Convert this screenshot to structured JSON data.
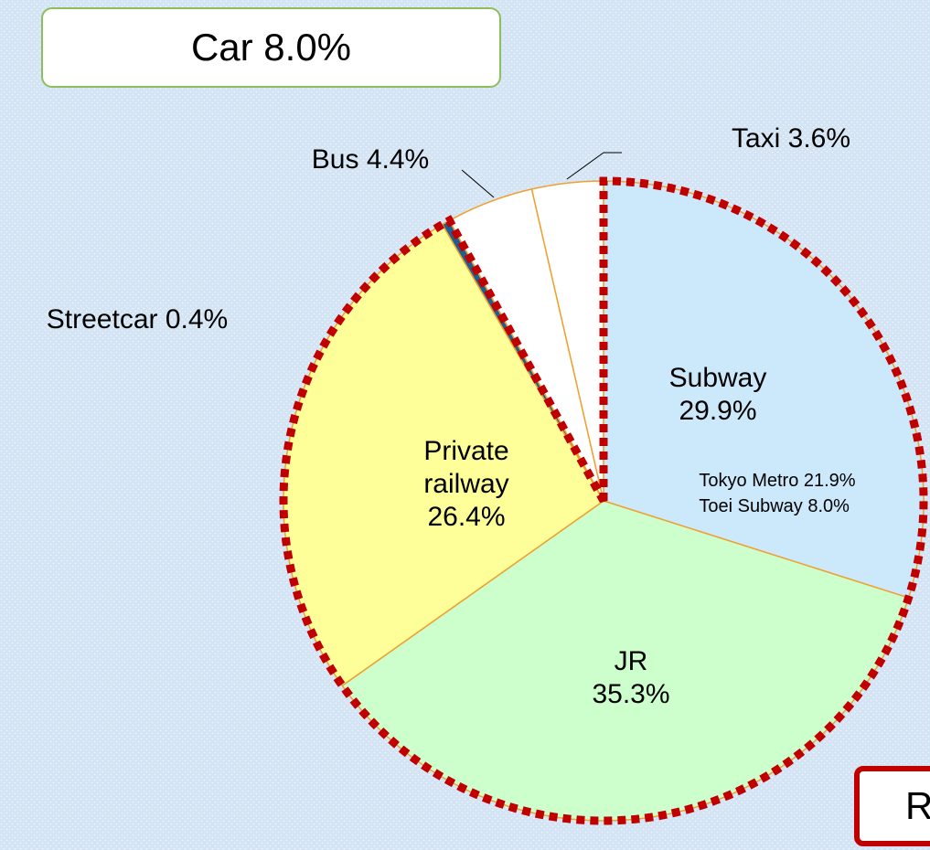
{
  "chart_data": {
    "type": "pie",
    "categories": [
      "Subway",
      "JR",
      "Private railway",
      "Streetcar",
      "Bus",
      "Taxi"
    ],
    "values": [
      29.9,
      35.3,
      26.4,
      0.4,
      4.4,
      3.6
    ],
    "value_labels": [
      "29.9%",
      "35.3%",
      "26.4%",
      "0.4%",
      "4.4%",
      "3.6%"
    ],
    "colors": [
      "#cce8fb",
      "#ccffcc",
      "#ffff99",
      "#1f5f8f",
      "#ffffff",
      "#ffffff"
    ],
    "subway_breakdown": [
      "Tokyo Metro 21.9%",
      "Toei Subway 8.0%"
    ],
    "annotations": [
      "Car 8.0%",
      "R"
    ]
  }
}
